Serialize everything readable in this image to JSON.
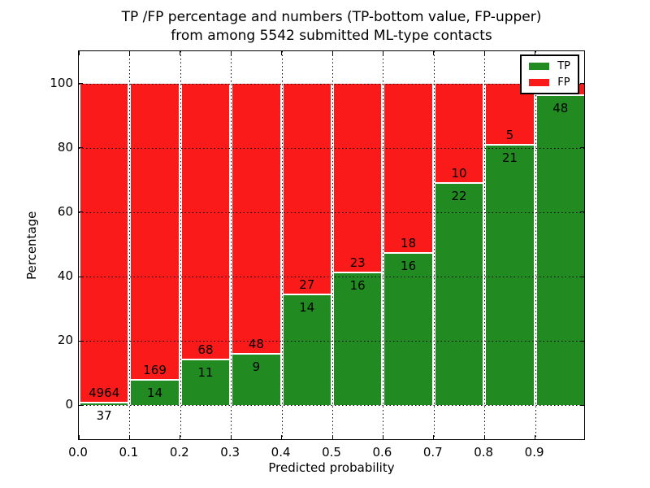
{
  "chart_data": {
    "type": "bar",
    "stacked": true,
    "normalization": "each bin scaled to 100%, segment heights are TP/FP share of bin",
    "title": "TP /FP percentage and numbers (TP-bottom value, FP-upper) from among 5542 submitted ML-type contacts",
    "title_lines": [
      "TP /FP percentage and numbers (TP-bottom value, FP-upper)",
      "from among 5542 submitted ML-type contacts"
    ],
    "xlabel": "Predicted probability",
    "ylabel": "Percentage",
    "total_contacts": 5542,
    "xlim": [
      0,
      1
    ],
    "ylim": [
      -11,
      110
    ],
    "grid": "dotted, on for both axes",
    "x_ticks": [
      0.0,
      0.1,
      0.2,
      0.3,
      0.4,
      0.5,
      0.6,
      0.7,
      0.8,
      0.9
    ],
    "x_tick_labels": [
      "0.0",
      "0.1",
      "0.2",
      "0.3",
      "0.4",
      "0.5",
      "0.6",
      "0.7",
      "0.8",
      "0.9"
    ],
    "y_ticks": [
      0,
      20,
      40,
      60,
      80,
      100
    ],
    "y_tick_labels": [
      "0",
      "20",
      "40",
      "60",
      "80",
      "100"
    ],
    "bins": [
      {
        "range": "0.0-0.1",
        "tp": 37,
        "fp": 4964,
        "tp_label": "37",
        "fp_label": "4964"
      },
      {
        "range": "0.1-0.2",
        "tp": 14,
        "fp": 169,
        "tp_label": "14",
        "fp_label": "169"
      },
      {
        "range": "0.2-0.3",
        "tp": 11,
        "fp": 68,
        "tp_label": "11",
        "fp_label": "68"
      },
      {
        "range": "0.3-0.4",
        "tp": 9,
        "fp": 48,
        "tp_label": "9",
        "fp_label": "48"
      },
      {
        "range": "0.4-0.5",
        "tp": 14,
        "fp": 27,
        "tp_label": "14",
        "fp_label": "27"
      },
      {
        "range": "0.5-0.6",
        "tp": 16,
        "fp": 23,
        "tp_label": "16",
        "fp_label": "23"
      },
      {
        "range": "0.6-0.7",
        "tp": 16,
        "fp": 18,
        "tp_label": "16",
        "fp_label": "18"
      },
      {
        "range": "0.7-0.8",
        "tp": 22,
        "fp": 10,
        "tp_label": "22",
        "fp_label": "10"
      },
      {
        "range": "0.8-0.9",
        "tp": 21,
        "fp": 5,
        "tp_label": "21",
        "fp_label": "5"
      },
      {
        "range": "0.9-1.0",
        "tp": 48,
        "fp": 2,
        "tp_label": "48",
        "fp_label": ""
      }
    ],
    "series": [
      {
        "name": "TP",
        "color": "#218a21",
        "values": [
          37,
          14,
          11,
          9,
          14,
          16,
          16,
          22,
          21,
          48
        ]
      },
      {
        "name": "FP",
        "color": "#fa1a1a",
        "values": [
          4964,
          169,
          68,
          48,
          27,
          23,
          18,
          10,
          5,
          2
        ]
      }
    ],
    "legend": {
      "position": "upper right",
      "entries": [
        {
          "label": "TP",
          "color": "#218a21"
        },
        {
          "label": "FP",
          "color": "#fa1a1a"
        }
      ]
    }
  },
  "colors": {
    "tp": "#218a21",
    "fp": "#fa1a1a",
    "grid": "#000000",
    "spine": "#000000",
    "bar_edge": "#ffffff",
    "background": "#ffffff",
    "text": "#000000"
  }
}
